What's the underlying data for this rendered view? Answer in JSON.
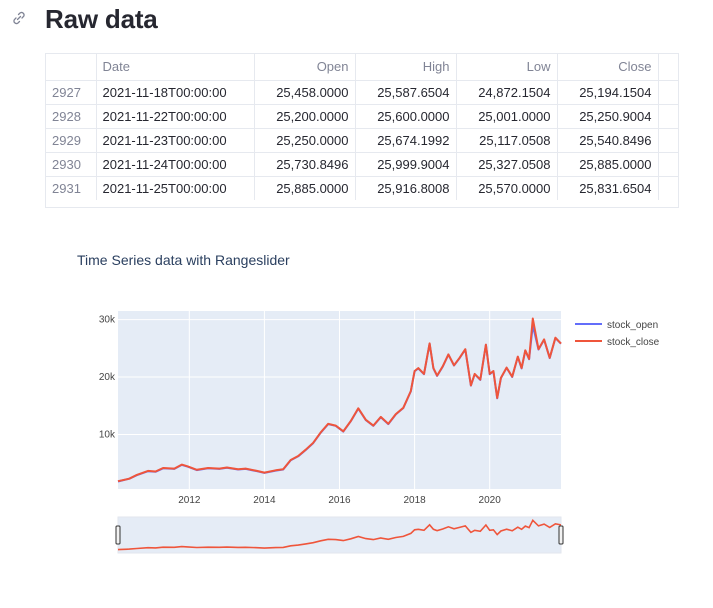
{
  "header": {
    "title": "Raw data",
    "link_icon": "link-icon"
  },
  "table": {
    "columns": [
      "",
      "Date",
      "Open",
      "High",
      "Low",
      "Close"
    ],
    "rows": [
      {
        "index": "2927",
        "date": "2021-11-18T00:00:00",
        "open": "25,458.0000",
        "high": "25,587.6504",
        "low": "24,872.1504",
        "close": "25,194.1504"
      },
      {
        "index": "2928",
        "date": "2021-11-22T00:00:00",
        "open": "25,200.0000",
        "high": "25,600.0000",
        "low": "25,001.0000",
        "close": "25,250.9004"
      },
      {
        "index": "2929",
        "date": "2021-11-23T00:00:00",
        "open": "25,250.0000",
        "high": "25,674.1992",
        "low": "25,117.0508",
        "close": "25,540.8496"
      },
      {
        "index": "2930",
        "date": "2021-11-24T00:00:00",
        "open": "25,730.8496",
        "high": "25,999.9004",
        "low": "25,327.0508",
        "close": "25,885.0000"
      },
      {
        "index": "2931",
        "date": "2021-11-25T00:00:00",
        "open": "25,885.0000",
        "high": "25,916.8008",
        "low": "25,570.0000",
        "close": "25,831.6504"
      }
    ]
  },
  "chart_data": {
    "type": "line",
    "title": "Time Series data with Rangeslider",
    "xlabel": "",
    "ylabel": "",
    "x_ticks": [
      "2012",
      "2014",
      "2016",
      "2018",
      "2020"
    ],
    "y_ticks": [
      "10k",
      "20k",
      "30k"
    ],
    "xlim": [
      2010.1,
      2021.9
    ],
    "ylim": [
      500,
      31500
    ],
    "grid": true,
    "legend": "top-right",
    "rangeslider": true,
    "colors": {
      "stock_open": "#636efa",
      "stock_close": "#ef553b",
      "plot_bg": "#e5ecf6"
    },
    "series": [
      {
        "name": "stock_open"
      },
      {
        "name": "stock_close"
      }
    ],
    "x": [
      2010.1,
      2010.4,
      2010.6,
      2010.9,
      2011.1,
      2011.3,
      2011.6,
      2011.8,
      2011.95,
      2012.2,
      2012.5,
      2012.8,
      2013.0,
      2013.3,
      2013.5,
      2013.8,
      2014.0,
      2014.3,
      2014.5,
      2014.7,
      2014.9,
      2015.1,
      2015.3,
      2015.5,
      2015.7,
      2015.9,
      2016.1,
      2016.3,
      2016.5,
      2016.7,
      2016.9,
      2017.1,
      2017.3,
      2017.5,
      2017.7,
      2017.9,
      2018.0,
      2018.1,
      2018.25,
      2018.4,
      2018.5,
      2018.6,
      2018.75,
      2018.9,
      2019.05,
      2019.2,
      2019.35,
      2019.5,
      2019.6,
      2019.75,
      2019.9,
      2020.0,
      2020.1,
      2020.2,
      2020.3,
      2020.45,
      2020.6,
      2020.75,
      2020.85,
      2020.95,
      2021.05,
      2021.15,
      2021.3,
      2021.45,
      2021.6,
      2021.75,
      2021.9
    ],
    "open": [
      1800,
      2300,
      2900,
      3600,
      3500,
      4100,
      4000,
      4700,
      4400,
      3800,
      4100,
      4000,
      4200,
      3900,
      4000,
      3600,
      3300,
      3700,
      3900,
      5500,
      6200,
      7300,
      8500,
      10300,
      11800,
      11500,
      10500,
      12300,
      14500,
      12500,
      11500,
      13000,
      11800,
      13500,
      14600,
      17500,
      21000,
      21500,
      20500,
      25800,
      21500,
      20200,
      21800,
      23900,
      22000,
      23300,
      24800,
      18500,
      20500,
      19500,
      25600,
      20500,
      21000,
      16300,
      19800,
      21600,
      20000,
      23500,
      21500,
      24600,
      23100,
      29000,
      24800,
      26500,
      23300,
      26800,
      25800
    ],
    "close": [
      1850,
      2300,
      2950,
      3650,
      3550,
      4150,
      4050,
      4750,
      4450,
      3850,
      4150,
      4050,
      4250,
      3950,
      4050,
      3650,
      3350,
      3750,
      3950,
      5550,
      6250,
      7350,
      8550,
      10350,
      11850,
      11550,
      10550,
      12350,
      14550,
      12550,
      11550,
      13050,
      11850,
      13550,
      14650,
      17550,
      21050,
      21550,
      20550,
      25850,
      21550,
      20250,
      21850,
      23950,
      22050,
      23350,
      24850,
      18550,
      20550,
      19550,
      25650,
      20550,
      21050,
      16350,
      19850,
      21650,
      20050,
      23550,
      21550,
      24650,
      23150,
      30200,
      24850,
      26550,
      23350,
      26850,
      25831
    ]
  }
}
